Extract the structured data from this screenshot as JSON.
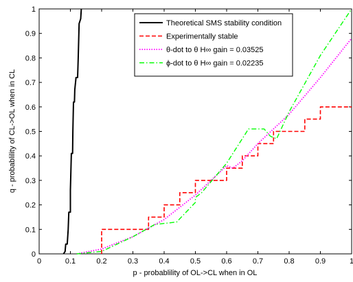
{
  "chart_data": {
    "type": "line",
    "xlabel": "p - probablility of OL->CL when in OL",
    "ylabel": "q - probablility of CL->OL when in CL",
    "xlim": [
      0,
      1
    ],
    "ylim": [
      0,
      1
    ],
    "x_ticks": [
      "0",
      "0.1",
      "0.2",
      "0.3",
      "0.4",
      "0.5",
      "0.6",
      "0.7",
      "0.8",
      "0.9",
      "1"
    ],
    "y_ticks": [
      "0",
      "0.1",
      "0.2",
      "0.3",
      "0.4",
      "0.5",
      "0.6",
      "0.7",
      "0.8",
      "0.9",
      "1"
    ],
    "grid": false,
    "legend_position": "top-right",
    "series": [
      {
        "name": "Theoretical SMS stability condition",
        "color": "#000000",
        "style": "solid",
        "points": [
          [
            0.078,
            0
          ],
          [
            0.083,
            0.01
          ],
          [
            0.085,
            0.04
          ],
          [
            0.09,
            0.04
          ],
          [
            0.093,
            0.1
          ],
          [
            0.095,
            0.17
          ],
          [
            0.1,
            0.17
          ],
          [
            0.1,
            0.26
          ],
          [
            0.103,
            0.41
          ],
          [
            0.107,
            0.41
          ],
          [
            0.108,
            0.5
          ],
          [
            0.11,
            0.62
          ],
          [
            0.113,
            0.62
          ],
          [
            0.114,
            0.67
          ],
          [
            0.118,
            0.72
          ],
          [
            0.123,
            0.72
          ],
          [
            0.125,
            0.8
          ],
          [
            0.128,
            0.94
          ],
          [
            0.133,
            0.96
          ],
          [
            0.135,
            1.0
          ]
        ]
      },
      {
        "name": "Experimentally stable",
        "color": "#ff0000",
        "style": "dashed",
        "points": [
          [
            0.2,
            0
          ],
          [
            0.2,
            0.1
          ],
          [
            0.35,
            0.1
          ],
          [
            0.35,
            0.15
          ],
          [
            0.4,
            0.15
          ],
          [
            0.4,
            0.2
          ],
          [
            0.45,
            0.2
          ],
          [
            0.45,
            0.25
          ],
          [
            0.5,
            0.25
          ],
          [
            0.5,
            0.3
          ],
          [
            0.6,
            0.3
          ],
          [
            0.6,
            0.35
          ],
          [
            0.65,
            0.35
          ],
          [
            0.65,
            0.4
          ],
          [
            0.7,
            0.4
          ],
          [
            0.7,
            0.45
          ],
          [
            0.75,
            0.45
          ],
          [
            0.75,
            0.5
          ],
          [
            0.85,
            0.5
          ],
          [
            0.85,
            0.55
          ],
          [
            0.9,
            0.55
          ],
          [
            0.9,
            0.6
          ],
          [
            1.0,
            0.6
          ]
        ]
      },
      {
        "name": "θ-dot to θ H∞ gain = 0.03525",
        "color": "#ff00ff",
        "style": "dotted",
        "points": [
          [
            0.12,
            0
          ],
          [
            0.2,
            0.02
          ],
          [
            0.3,
            0.07
          ],
          [
            0.4,
            0.14
          ],
          [
            0.5,
            0.24
          ],
          [
            0.6,
            0.36
          ],
          [
            0.62,
            0.35
          ],
          [
            0.65,
            0.38
          ],
          [
            0.7,
            0.45
          ],
          [
            0.8,
            0.57
          ],
          [
            0.9,
            0.72
          ],
          [
            1.0,
            0.88
          ]
        ]
      },
      {
        "name": "ϕ-dot to θ H∞ gain = 0.02235",
        "color": "#00ff00",
        "style": "dashdot",
        "points": [
          [
            0.12,
            0
          ],
          [
            0.2,
            0.01
          ],
          [
            0.3,
            0.07
          ],
          [
            0.37,
            0.12
          ],
          [
            0.44,
            0.13
          ],
          [
            0.5,
            0.21
          ],
          [
            0.5,
            0.23
          ],
          [
            0.52,
            0.25
          ],
          [
            0.6,
            0.37
          ],
          [
            0.67,
            0.51
          ],
          [
            0.72,
            0.51
          ],
          [
            0.74,
            0.48
          ],
          [
            0.76,
            0.47
          ],
          [
            0.8,
            0.58
          ],
          [
            0.9,
            0.81
          ],
          [
            1.0,
            1.0
          ]
        ]
      }
    ]
  }
}
